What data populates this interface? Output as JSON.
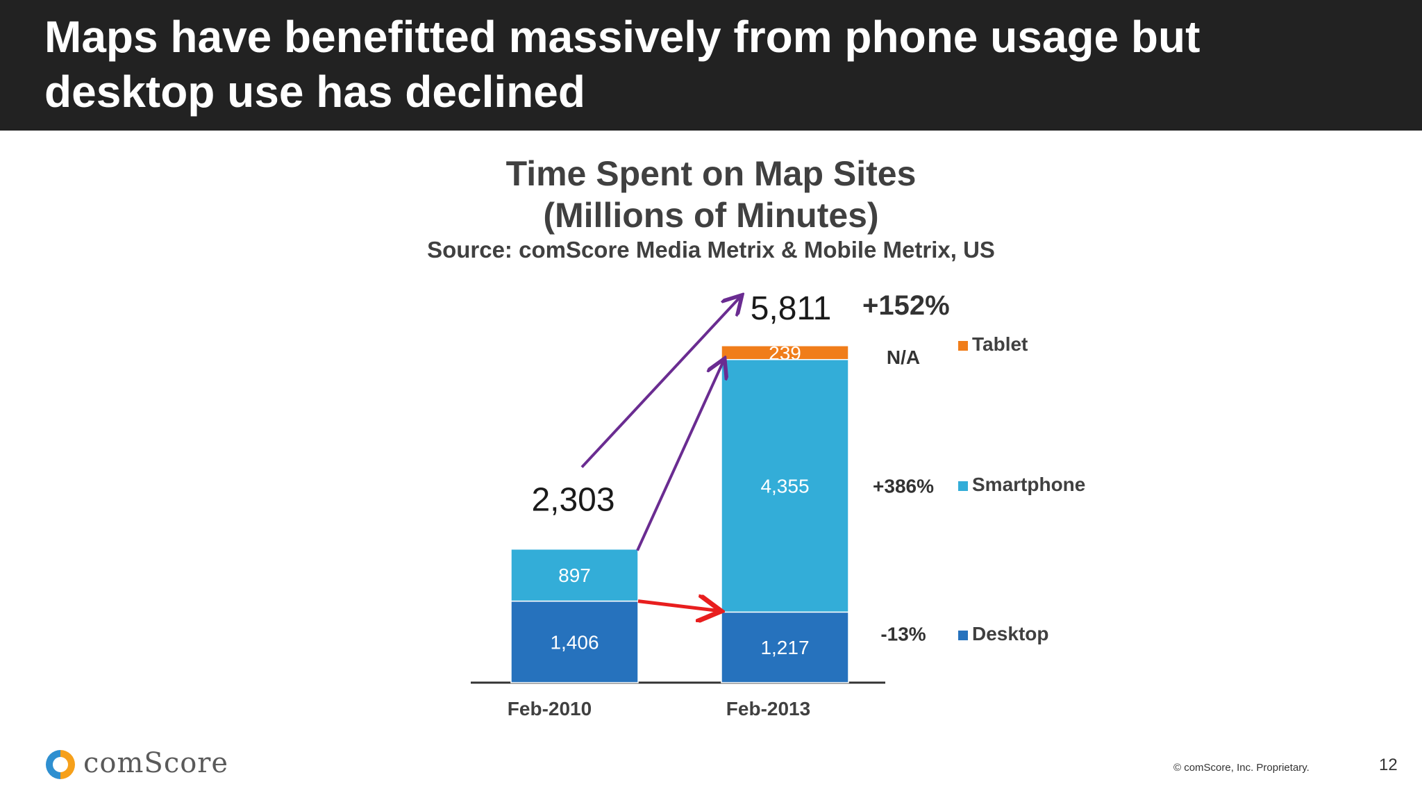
{
  "slide": {
    "title": "Maps have benefitted massively  from phone usage but desktop use has declined",
    "footer_copyright": "© comScore, Inc. Proprietary.",
    "page_number": "12",
    "logo_text": "comScore"
  },
  "chart_data": {
    "type": "bar",
    "stacked": true,
    "title": "Time Spent on Map Sites",
    "subtitle": "(Millions of Minutes)",
    "source": "Source: comScore Media Metrix & Mobile Metrix, US",
    "categories": [
      "Feb-2010",
      "Feb-2013"
    ],
    "series": [
      {
        "name": "Desktop",
        "values": [
          1406,
          1217
        ],
        "labels": [
          "1,406",
          "1,217"
        ],
        "color": "#2672bd",
        "change": "-13%"
      },
      {
        "name": "Smartphone",
        "values": [
          897,
          4355
        ],
        "labels": [
          "897",
          "4,355"
        ],
        "color": "#33add8",
        "change": "+386%"
      },
      {
        "name": "Tablet",
        "values": [
          0,
          239
        ],
        "labels": [
          "",
          "239"
        ],
        "color": "#f07d1a",
        "change": "N/A"
      }
    ],
    "totals": [
      "2,303",
      "5,811"
    ],
    "total_change": "+152%",
    "ylim": [
      0,
      6000
    ],
    "grid": false,
    "legend_position": "right",
    "arrow_colors": {
      "growth": "#6a2c91",
      "decline": "#e81e1e"
    }
  }
}
